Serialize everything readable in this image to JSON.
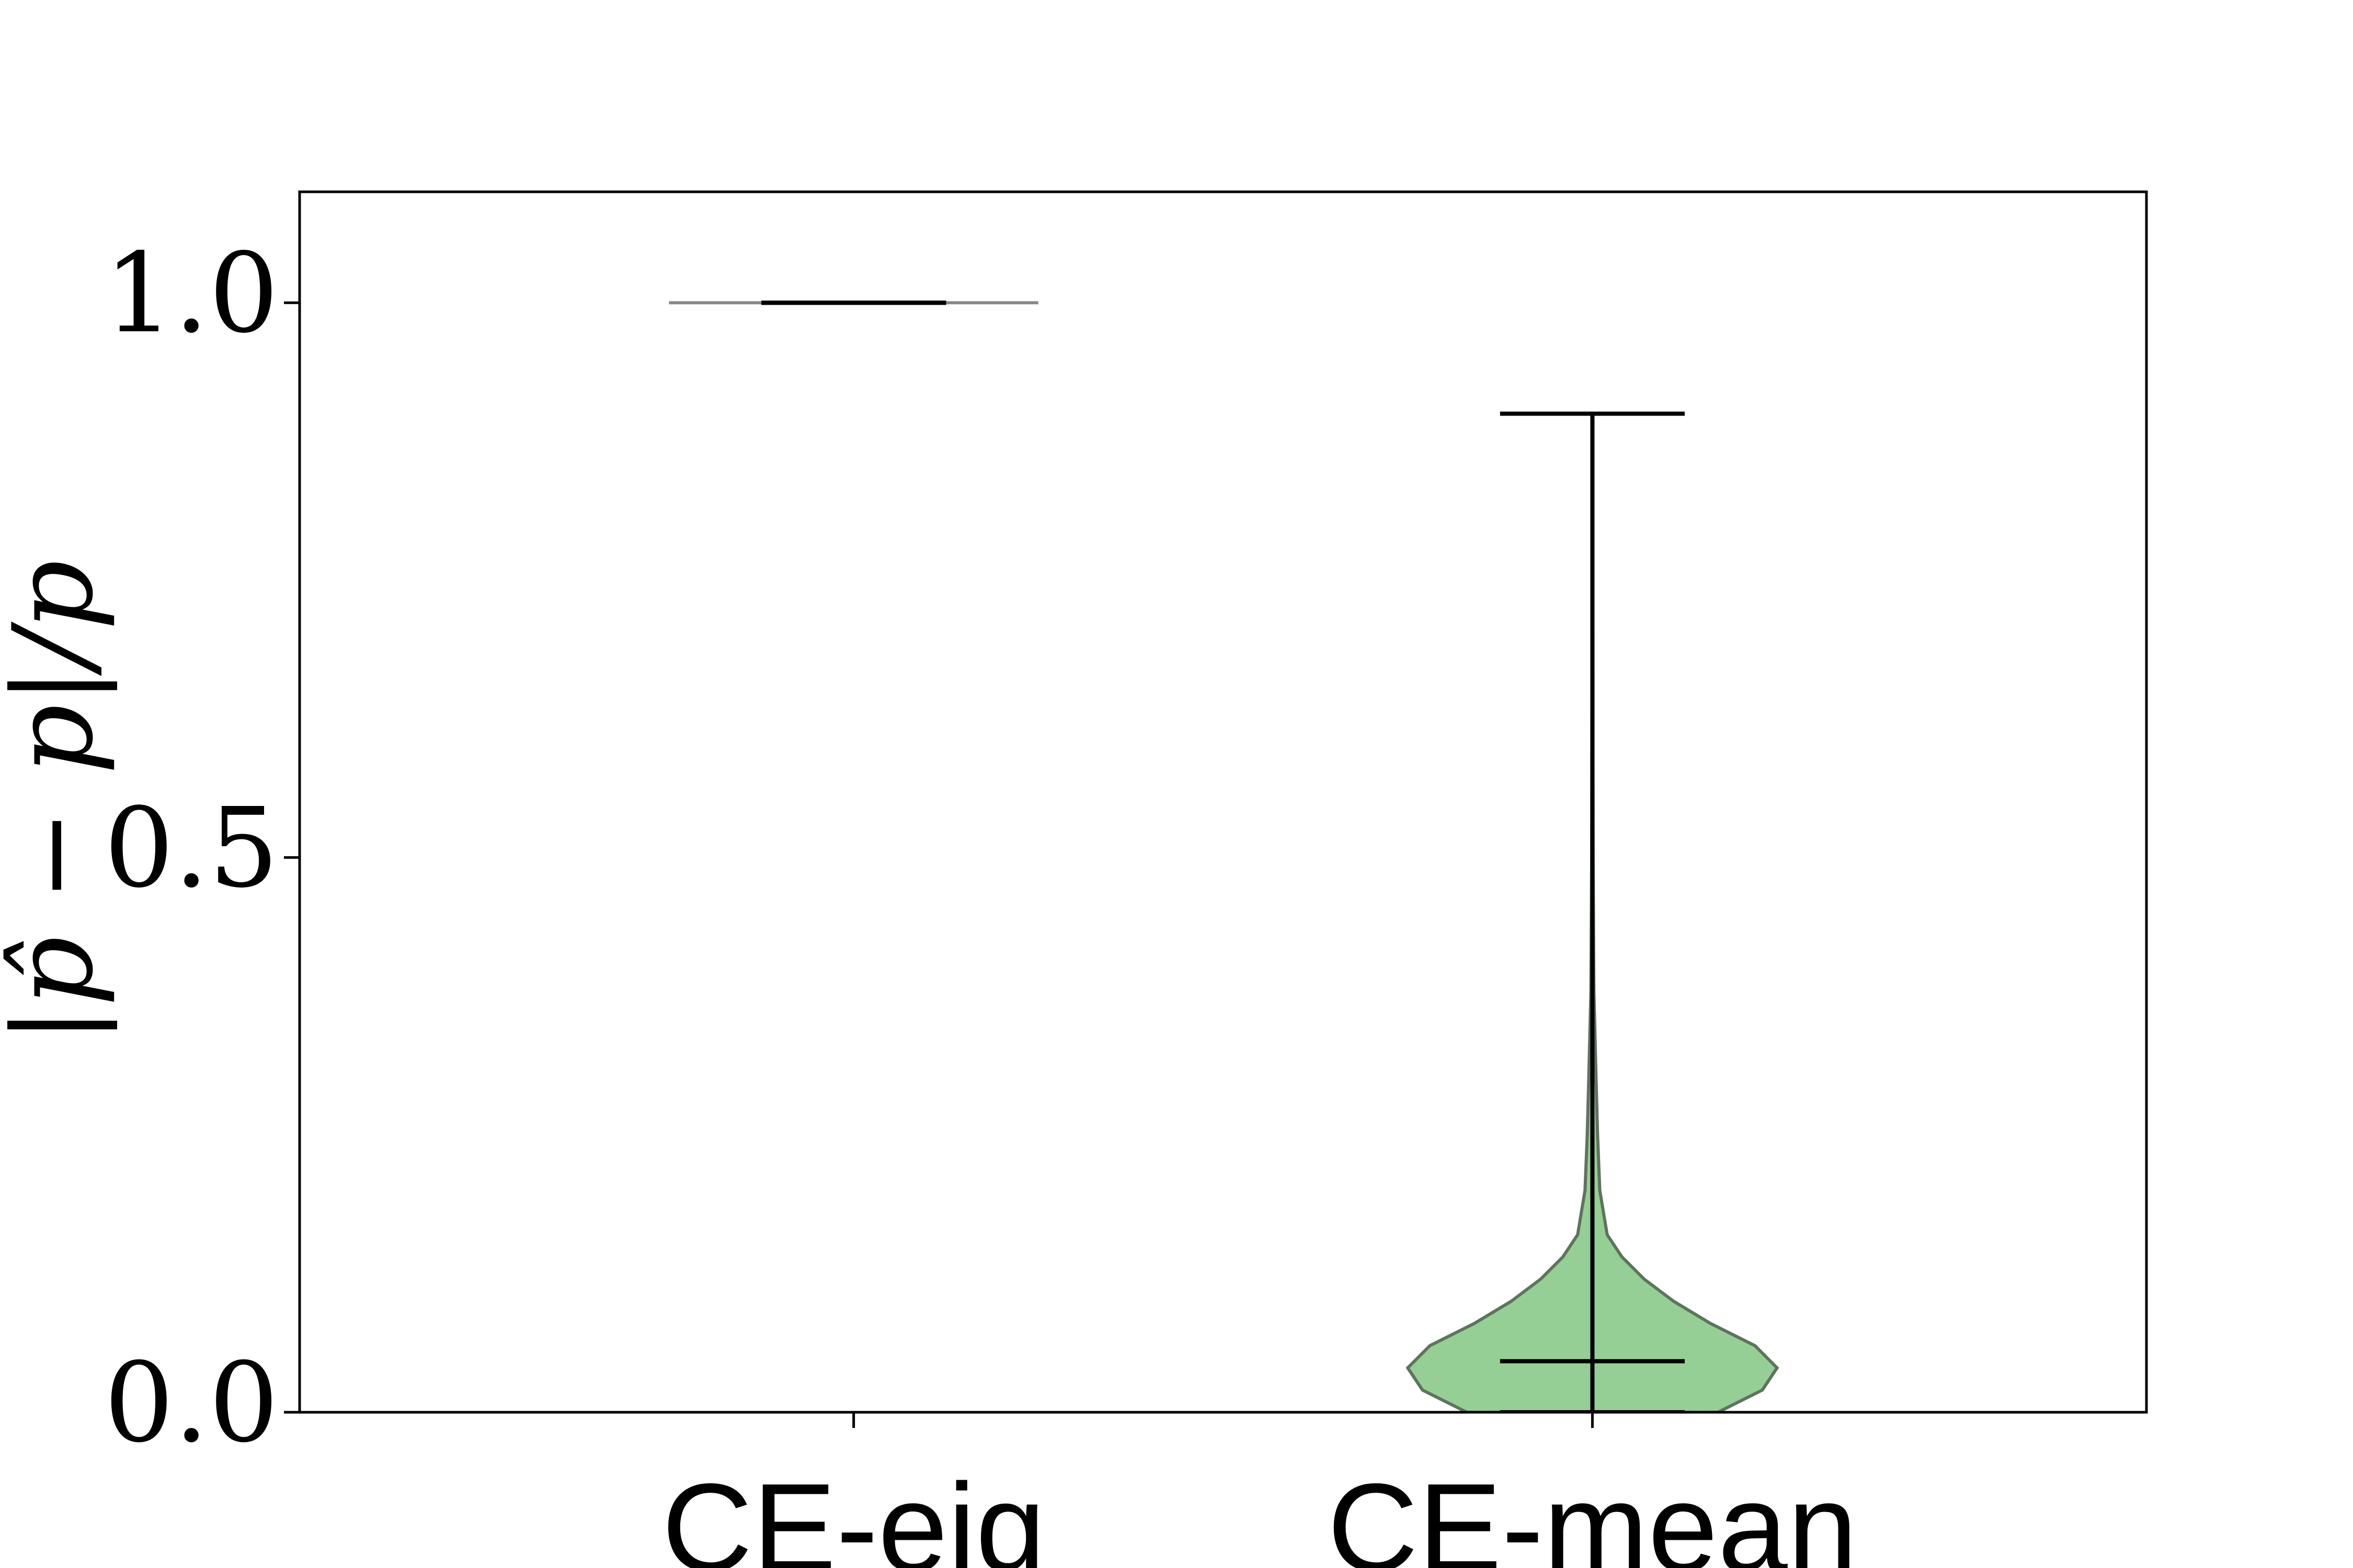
{
  "chart_data": {
    "type": "violin",
    "y_label": "|p̂ − p|/p",
    "categories": [
      "CE-eig",
      "CE-mean"
    ],
    "xlim": [
      0.25,
      2.75
    ],
    "ylim": [
      0,
      1.1
    ],
    "yticks": [
      {
        "value": 0,
        "label": "0.0"
      },
      {
        "value": 0.5,
        "label": "0.5"
      },
      {
        "value": 1,
        "label": "1.0"
      }
    ],
    "fill_color": "#95cf95",
    "line_color": "#000000",
    "violins": [
      {
        "min": 1,
        "max": 1,
        "median": 1,
        "edge_color": "#888888",
        "density_y": [
          1
        ],
        "density_width": [
          0.25
        ]
      },
      {
        "min": 0,
        "max": 0.9,
        "median": 0.046,
        "edge_color": "#5f735f",
        "density_y": [
          0,
          0.02,
          0.04,
          0.06,
          0.08,
          0.1,
          0.12,
          0.14,
          0.16,
          0.2,
          0.25,
          0.3,
          0.38,
          0.5,
          0.9
        ],
        "density_width": [
          0.17,
          0.23,
          0.25,
          0.22,
          0.16,
          0.11,
          0.07,
          0.04,
          0.02,
          0.01,
          0.007,
          0.005,
          0.002,
          0.001,
          0
        ]
      }
    ]
  }
}
